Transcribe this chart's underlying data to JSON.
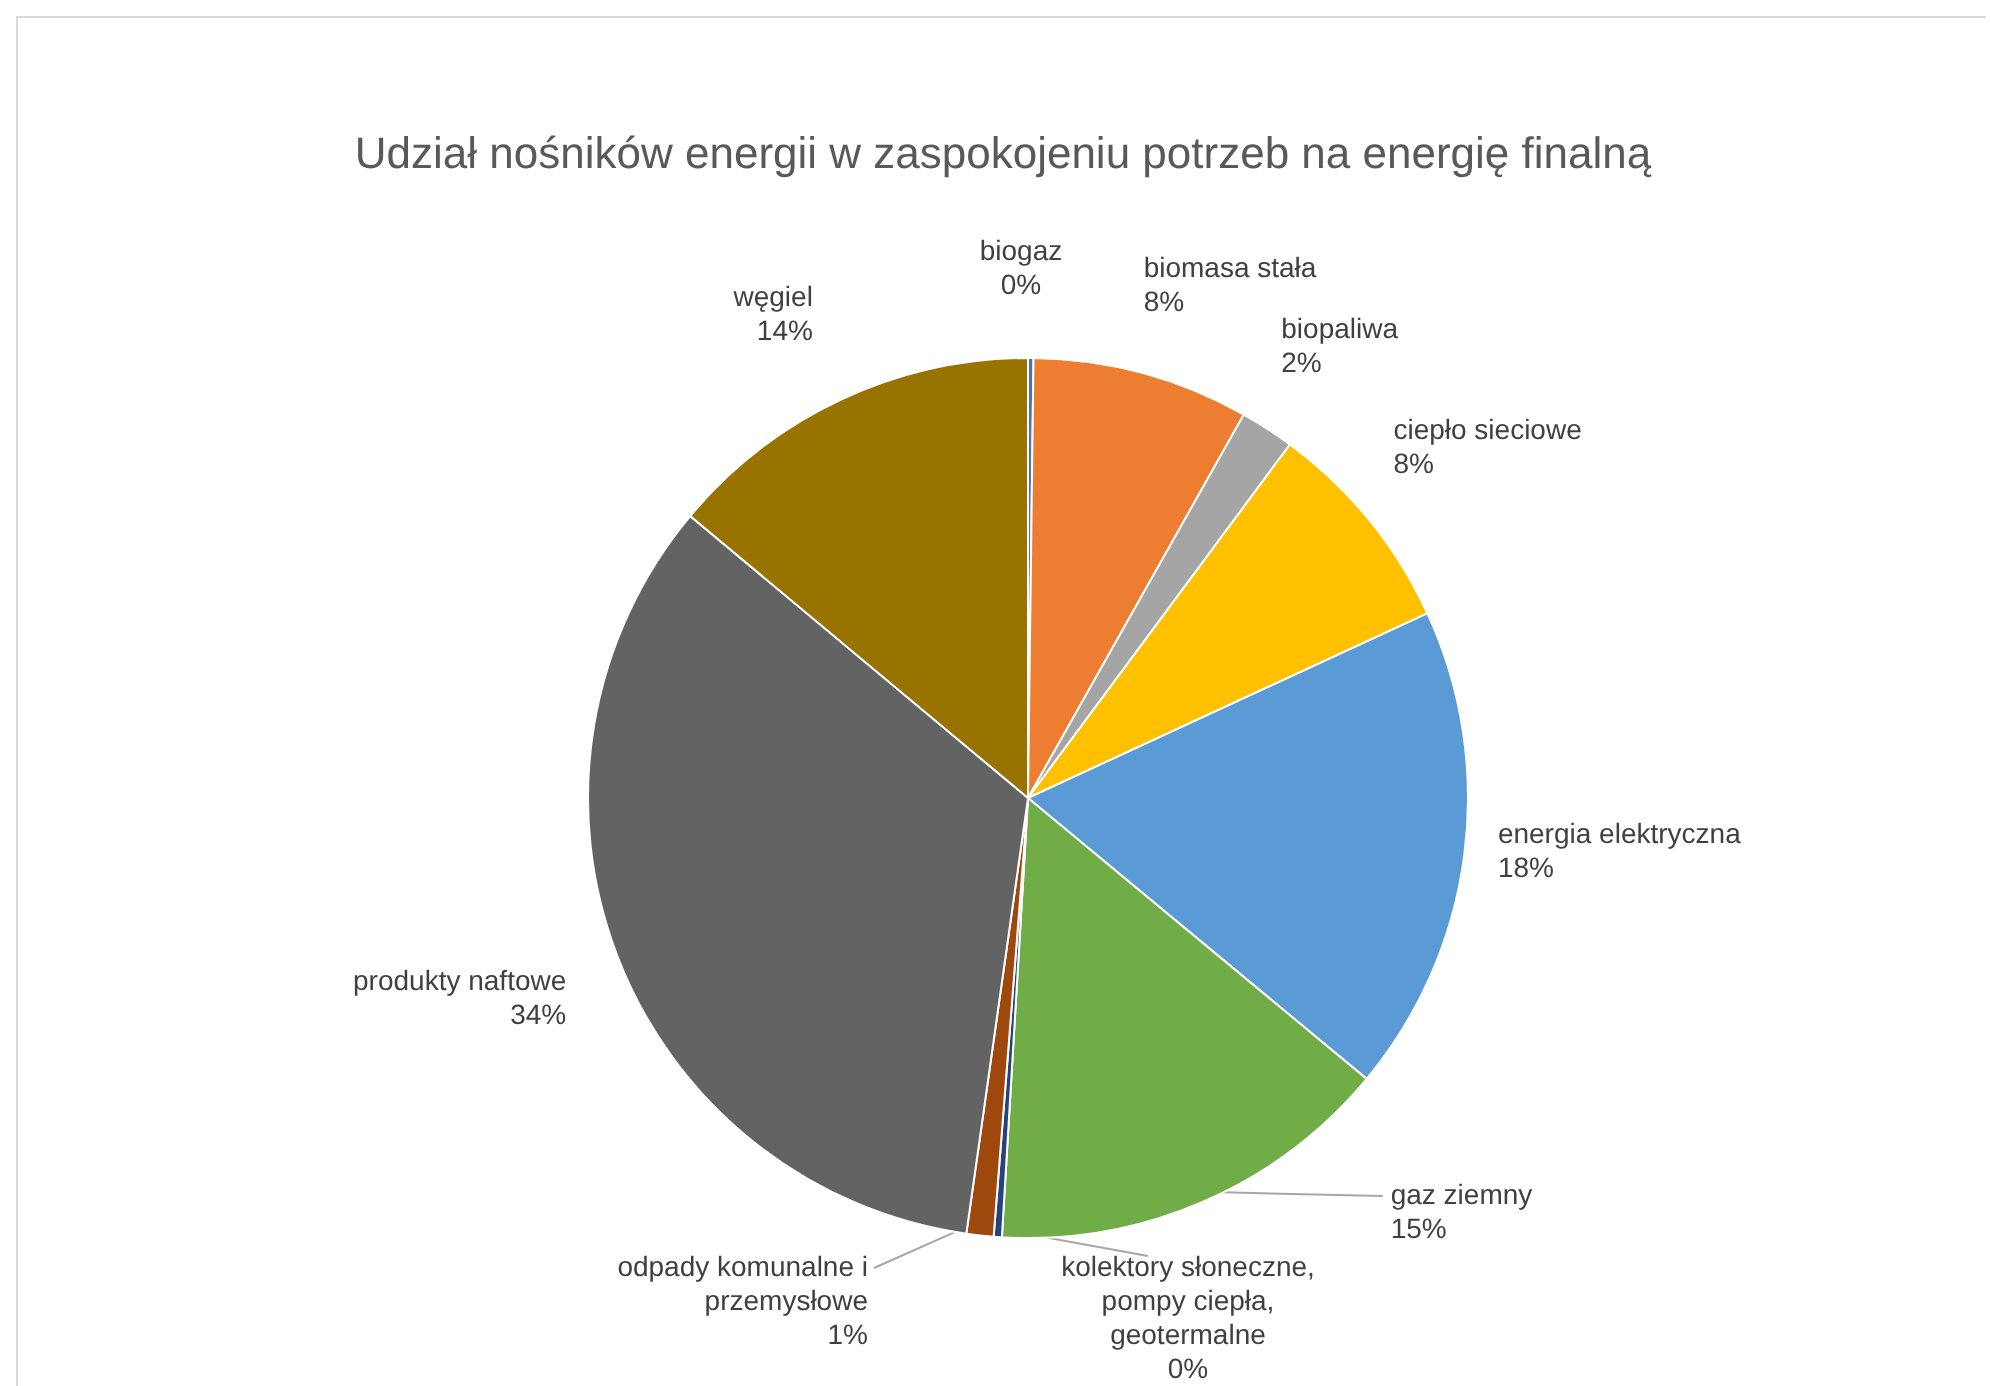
{
  "chart_data": {
    "type": "pie",
    "title": "Udział nośników energii w zaspokojeniu potrzeb na energię finalną",
    "categories": [
      "biogaz",
      "biomasa stała",
      "biopaliwa",
      "ciepło sieciowe",
      "energia elektryczna",
      "gaz ziemny",
      "kolektory słoneczne, pompy ciepła, geotermalne",
      "odpady komunalne i przemysłowe",
      "produkty naftowe",
      "węgiel"
    ],
    "values": [
      0.2,
      8,
      2,
      8,
      18,
      15,
      0.3,
      1,
      34,
      14
    ],
    "value_labels": [
      "0%",
      "8%",
      "2%",
      "8%",
      "18%",
      "15%",
      "0%",
      "1%",
      "34%",
      "14%"
    ],
    "colors": [
      "#4472c4",
      "#ed7d31",
      "#a5a5a5",
      "#ffc000",
      "#5b9bd5",
      "#70ad47",
      "#264478",
      "#9e480e",
      "#636363",
      "#997300"
    ],
    "legend": false
  }
}
